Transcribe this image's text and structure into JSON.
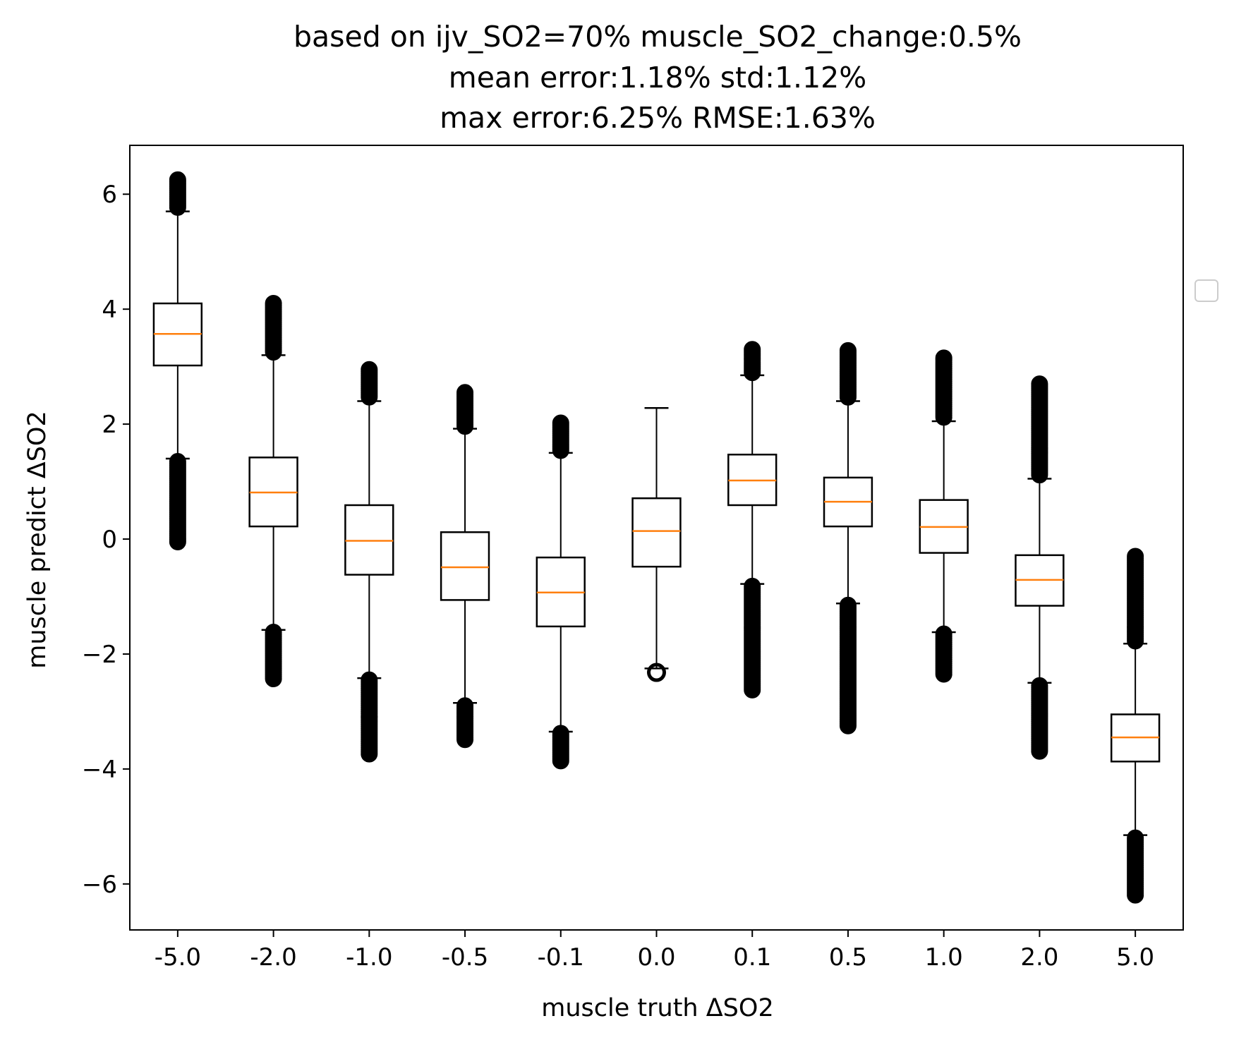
{
  "chart_data": {
    "type": "box",
    "title_lines": [
      "based on ijv_SO2=70% muscle_SO2_change:0.5%",
      "mean error:1.18% std:1.12%",
      "max error:6.25% RMSE:1.63%"
    ],
    "xlabel": "muscle truth ΔSO2",
    "ylabel": "muscle predict ΔSO2",
    "ylim": [
      -6.8,
      6.85
    ],
    "yticks": [
      6,
      4,
      2,
      0,
      -2,
      -4,
      -6
    ],
    "ytick_labels": [
      "6",
      "4",
      "2",
      "0",
      "−2",
      "−4",
      "−6"
    ],
    "categories": [
      "-5.0",
      "-2.0",
      "-1.0",
      "-0.5",
      "-0.1",
      "0.0",
      "0.1",
      "0.5",
      "1.0",
      "2.0",
      "5.0"
    ],
    "boxes": [
      {
        "whislo": 1.4,
        "q1": 3.02,
        "med": 3.57,
        "q3": 4.1,
        "whishi": 5.7,
        "outliers_low": [
          -0.05,
          1.35
        ],
        "outliers_high": [
          5.75,
          6.25
        ]
      },
      {
        "whislo": -1.58,
        "q1": 0.22,
        "med": 0.81,
        "q3": 1.42,
        "whishi": 3.2,
        "outliers_low": [
          -2.45,
          -1.62
        ],
        "outliers_high": [
          3.25,
          4.1
        ]
      },
      {
        "whislo": -2.42,
        "q1": -0.62,
        "med": -0.03,
        "q3": 0.59,
        "whishi": 2.4,
        "outliers_low": [
          -3.75,
          -2.45
        ],
        "outliers_high": [
          2.45,
          2.95
        ]
      },
      {
        "whislo": -2.85,
        "q1": -1.06,
        "med": -0.49,
        "q3": 0.12,
        "whishi": 1.92,
        "outliers_low": [
          -3.5,
          -2.9
        ],
        "outliers_high": [
          1.95,
          2.55
        ]
      },
      {
        "whislo": -3.35,
        "q1": -1.52,
        "med": -0.93,
        "q3": -0.32,
        "whishi": 1.5,
        "outliers_low": [
          -3.88,
          -3.38
        ],
        "outliers_high": [
          1.52,
          2.02
        ]
      },
      {
        "whislo": -2.25,
        "q1": -0.48,
        "med": 0.14,
        "q3": 0.71,
        "whishi": 2.28,
        "outliers_low": [
          -2.32,
          -2.32
        ],
        "outliers_high": []
      },
      {
        "whislo": -0.78,
        "q1": 0.59,
        "med": 1.02,
        "q3": 1.47,
        "whishi": 2.85,
        "outliers_low": [
          -2.65,
          -0.82
        ],
        "outliers_high": [
          2.88,
          3.3
        ]
      },
      {
        "whislo": -1.12,
        "q1": 0.22,
        "med": 0.65,
        "q3": 1.07,
        "whishi": 2.4,
        "outliers_low": [
          -3.25,
          -1.15
        ],
        "outliers_high": [
          2.45,
          3.28
        ]
      },
      {
        "whislo": -1.62,
        "q1": -0.24,
        "med": 0.21,
        "q3": 0.68,
        "whishi": 2.05,
        "outliers_low": [
          -2.38,
          -1.65
        ],
        "outliers_high": [
          2.1,
          3.15
        ]
      },
      {
        "whislo": -2.5,
        "q1": -1.16,
        "med": -0.71,
        "q3": -0.28,
        "whishi": 1.05,
        "outliers_low": [
          -3.7,
          -2.55
        ],
        "outliers_high": [
          1.1,
          2.7
        ]
      },
      {
        "whislo": -5.15,
        "q1": -3.87,
        "med": -3.45,
        "q3": -3.05,
        "whishi": -1.82,
        "outliers_low": [
          -6.2,
          -5.2
        ],
        "outliers_high": [
          -1.8,
          -0.3
        ]
      }
    ],
    "colors": {
      "box": "#000000",
      "median": "#ff7f0e",
      "outlier": "#000000"
    },
    "grid": false,
    "legend": "empty, right of plot"
  }
}
